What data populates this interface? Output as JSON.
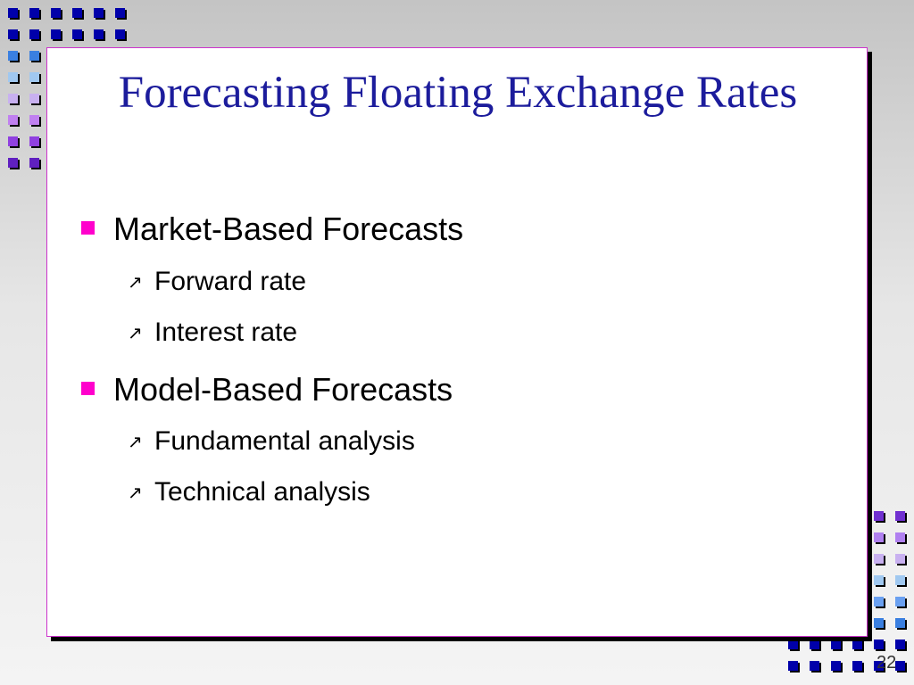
{
  "title": "Forecasting Floating Exchange Rates",
  "bullets": [
    {
      "text": "Market-Based Forecasts",
      "items": [
        "Forward rate",
        "Interest rate"
      ]
    },
    {
      "text": "Model-Based Forecasts",
      "items": [
        "Fundamental analysis",
        "Technical analysis"
      ]
    }
  ],
  "page_number": "22"
}
